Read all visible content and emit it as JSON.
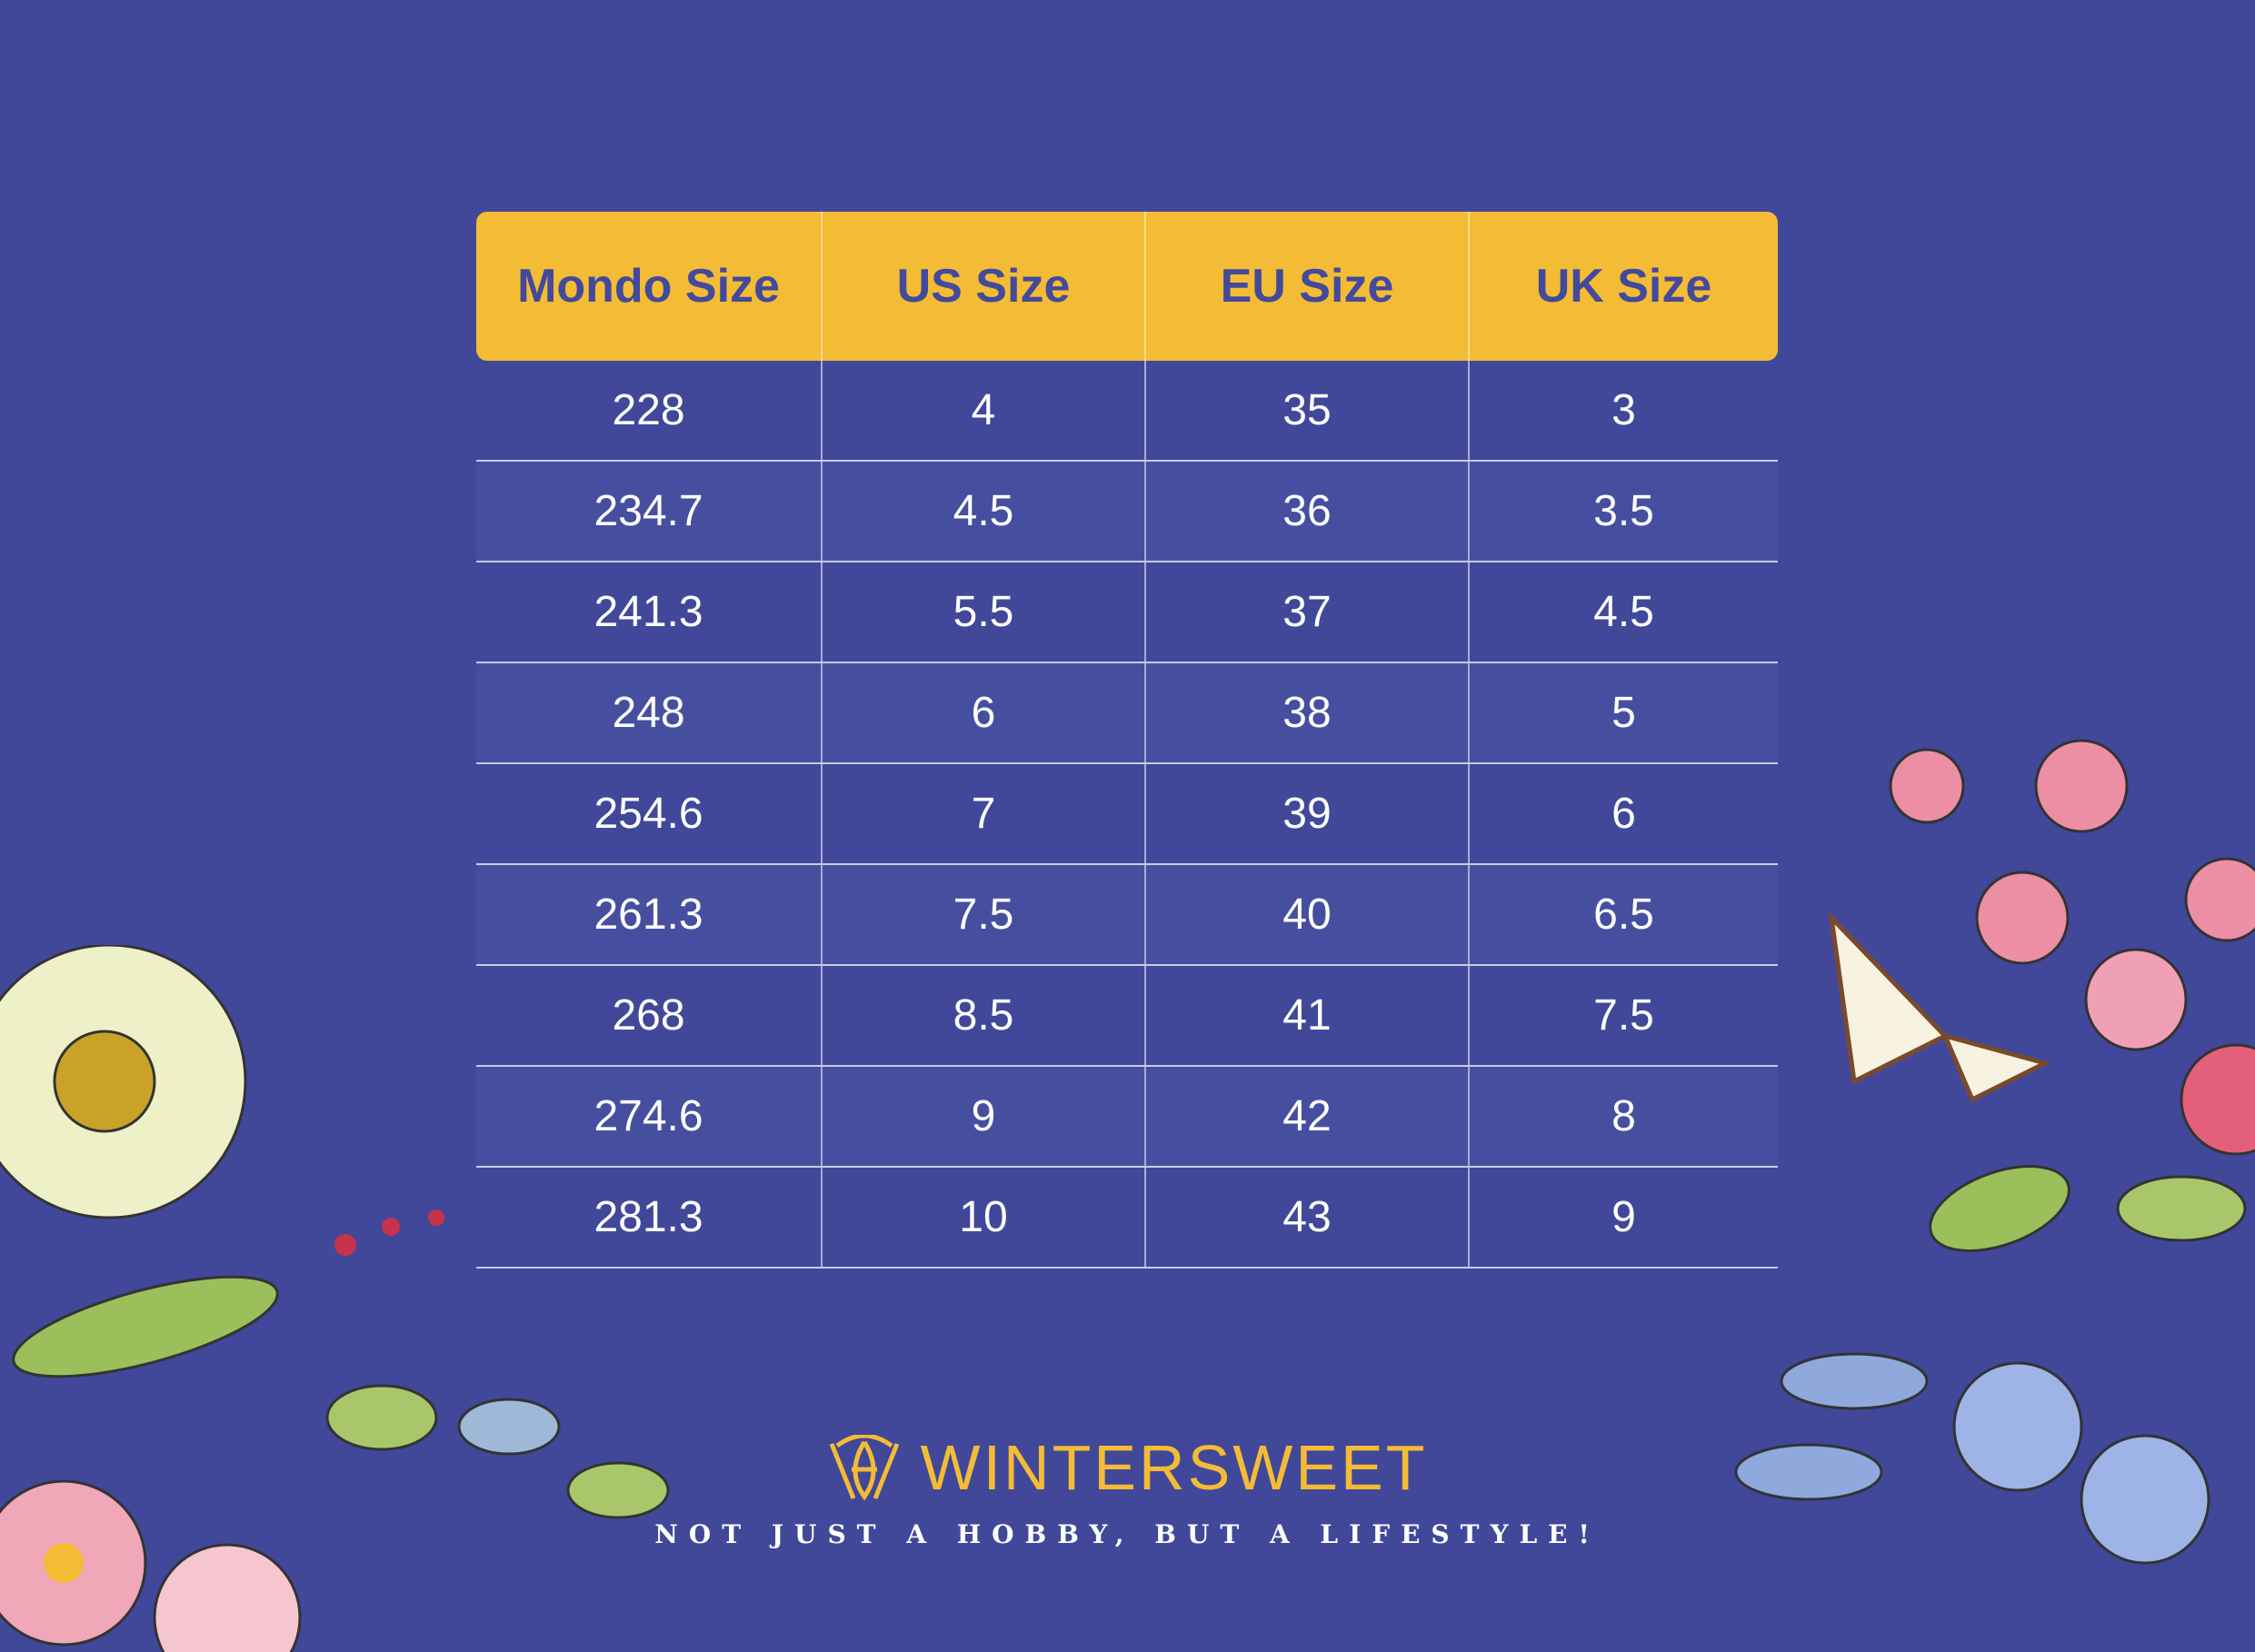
{
  "table": {
    "headers": [
      "Mondo Size",
      "US Size",
      "EU Size",
      "UK Size"
    ],
    "rows": [
      [
        "228",
        "4",
        "35",
        "3"
      ],
      [
        "234.7",
        "4.5",
        "36",
        "3.5"
      ],
      [
        "241.3",
        "5.5",
        "37",
        "4.5"
      ],
      [
        "248",
        "6",
        "38",
        "5"
      ],
      [
        "254.6",
        "7",
        "39",
        "6"
      ],
      [
        "261.3",
        "7.5",
        "40",
        "6.5"
      ],
      [
        "268",
        "8.5",
        "41",
        "7.5"
      ],
      [
        "274.6",
        "9",
        "42",
        "8"
      ],
      [
        "281.3",
        "10",
        "43",
        "9"
      ]
    ]
  },
  "brand": {
    "name": "WINTERSWEET",
    "tagline": "NOT JUST A HOBBY, BUT A LIFESTYLE!",
    "logo_icon": "wintersweet-logo-icon"
  },
  "colors": {
    "background": "#41489a",
    "accent": "#f4bc35",
    "header_text": "#434a9c"
  }
}
